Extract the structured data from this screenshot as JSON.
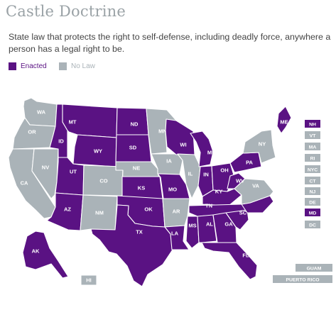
{
  "title": "Castle Doctrine",
  "subtitle": "State law that protects the right to self-defense, including deadly force, anywhere a person has a legal right to be.",
  "colors": {
    "enacted": "#5a1283",
    "no_law": "#aab3b8",
    "title": "#9aa2a6",
    "border": "#ffffff"
  },
  "legend": [
    {
      "key": "enacted",
      "label": "Enacted"
    },
    {
      "key": "no_law",
      "label": "No Law"
    }
  ],
  "states": [
    {
      "code": "WA",
      "status": "no_law"
    },
    {
      "code": "OR",
      "status": "no_law"
    },
    {
      "code": "CA",
      "status": "no_law"
    },
    {
      "code": "NV",
      "status": "no_law"
    },
    {
      "code": "ID",
      "status": "enacted"
    },
    {
      "code": "MT",
      "status": "enacted"
    },
    {
      "code": "WY",
      "status": "enacted"
    },
    {
      "code": "UT",
      "status": "enacted"
    },
    {
      "code": "AZ",
      "status": "enacted"
    },
    {
      "code": "CO",
      "status": "no_law"
    },
    {
      "code": "NM",
      "status": "no_law"
    },
    {
      "code": "ND",
      "status": "enacted"
    },
    {
      "code": "SD",
      "status": "enacted"
    },
    {
      "code": "NE",
      "status": "no_law"
    },
    {
      "code": "KS",
      "status": "enacted"
    },
    {
      "code": "OK",
      "status": "enacted"
    },
    {
      "code": "TX",
      "status": "enacted"
    },
    {
      "code": "MN",
      "status": "no_law"
    },
    {
      "code": "IA",
      "status": "no_law"
    },
    {
      "code": "MO",
      "status": "enacted"
    },
    {
      "code": "AR",
      "status": "no_law"
    },
    {
      "code": "LA",
      "status": "enacted"
    },
    {
      "code": "WI",
      "status": "enacted"
    },
    {
      "code": "IL",
      "status": "no_law"
    },
    {
      "code": "MI",
      "status": "enacted"
    },
    {
      "code": "IN",
      "status": "enacted"
    },
    {
      "code": "OH",
      "status": "enacted"
    },
    {
      "code": "KY",
      "status": "enacted"
    },
    {
      "code": "TN",
      "status": "enacted"
    },
    {
      "code": "MS",
      "status": "enacted"
    },
    {
      "code": "AL",
      "status": "enacted"
    },
    {
      "code": "GA",
      "status": "enacted"
    },
    {
      "code": "FL",
      "status": "enacted"
    },
    {
      "code": "SC",
      "status": "enacted"
    },
    {
      "code": "NC",
      "status": "enacted"
    },
    {
      "code": "VA",
      "status": "no_law"
    },
    {
      "code": "WV",
      "status": "enacted"
    },
    {
      "code": "PA",
      "status": "enacted"
    },
    {
      "code": "NY",
      "status": "no_law"
    },
    {
      "code": "ME",
      "status": "enacted"
    },
    {
      "code": "AK",
      "status": "enacted"
    },
    {
      "code": "HI",
      "status": "no_law"
    }
  ],
  "small_states": [
    {
      "code": "NH",
      "status": "enacted"
    },
    {
      "code": "VT",
      "status": "no_law"
    },
    {
      "code": "MA",
      "status": "no_law"
    },
    {
      "code": "RI",
      "status": "no_law"
    },
    {
      "code": "NYC",
      "status": "no_law"
    },
    {
      "code": "CT",
      "status": "no_law"
    },
    {
      "code": "NJ",
      "status": "no_law"
    },
    {
      "code": "DE",
      "status": "no_law"
    },
    {
      "code": "MD",
      "status": "enacted"
    },
    {
      "code": "DC",
      "status": "no_law"
    }
  ],
  "territories": [
    {
      "code": "GUAM",
      "status": "no_law"
    },
    {
      "code": "PUERTO RICO",
      "status": "no_law"
    }
  ]
}
